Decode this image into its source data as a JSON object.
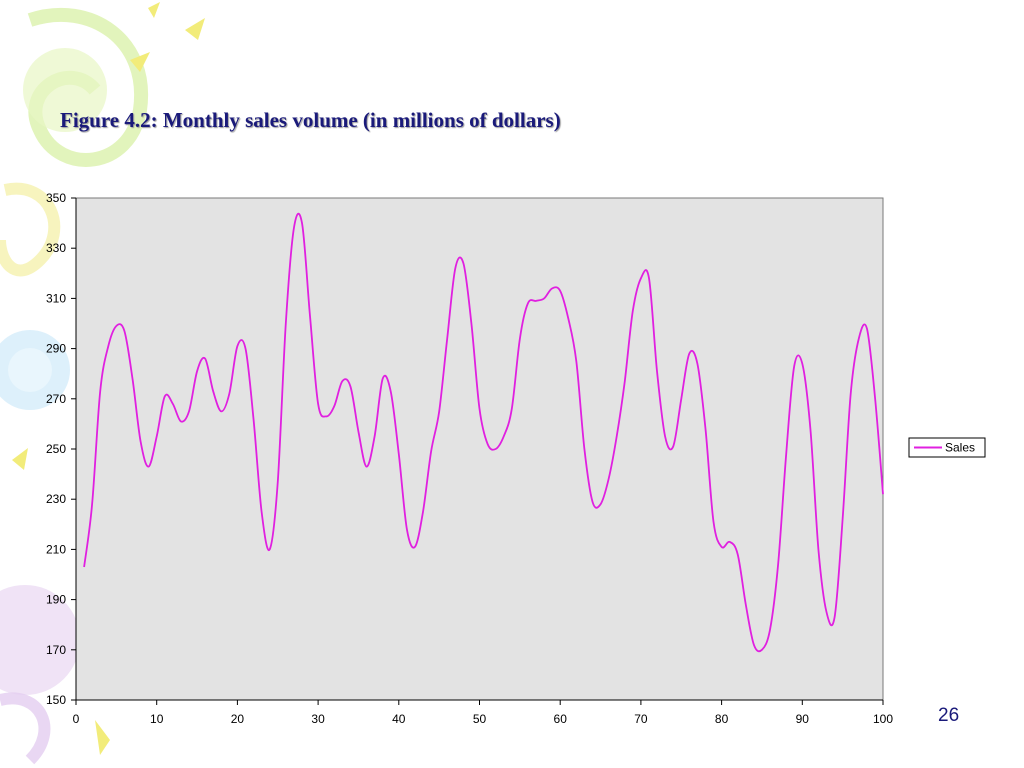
{
  "slide": {
    "title": "Figure 4.2:  Monthly sales volume (in millions of dollars)",
    "page_number": "26"
  },
  "colors": {
    "plot_background": "#e3e3e3",
    "series_line": "#e020e0",
    "title_text": "#1a1a7a"
  },
  "chart_data": {
    "type": "line",
    "title": "",
    "xlabel": "",
    "ylabel": "",
    "xlim": [
      0,
      100
    ],
    "ylim": [
      150,
      350
    ],
    "xticks": [
      0,
      10,
      20,
      30,
      40,
      50,
      60,
      70,
      80,
      90,
      100
    ],
    "yticks": [
      150,
      170,
      190,
      210,
      230,
      250,
      270,
      290,
      310,
      330,
      350
    ],
    "grid": false,
    "legend": {
      "position": "right",
      "entries": [
        "Sales"
      ]
    },
    "series": [
      {
        "name": "Sales",
        "color": "#e020e0",
        "x": [
          1,
          2,
          3,
          4,
          5,
          6,
          7,
          8,
          9,
          10,
          11,
          12,
          13,
          14,
          15,
          16,
          17,
          18,
          19,
          20,
          21,
          22,
          23,
          24,
          25,
          26,
          27,
          28,
          29,
          30,
          31,
          32,
          33,
          34,
          35,
          36,
          37,
          38,
          39,
          40,
          41,
          42,
          43,
          44,
          45,
          46,
          47,
          48,
          49,
          50,
          51,
          52,
          53,
          54,
          55,
          56,
          57,
          58,
          59,
          60,
          61,
          62,
          63,
          64,
          65,
          66,
          67,
          68,
          69,
          70,
          71,
          72,
          73,
          74,
          75,
          76,
          77,
          78,
          79,
          80,
          81,
          82,
          83,
          84,
          85,
          86,
          87,
          88,
          89,
          90,
          91,
          92,
          93,
          94,
          95,
          96,
          97,
          98,
          99,
          100
        ],
        "values": [
          203,
          228,
          273,
          291,
          299,
          297,
          278,
          253,
          243,
          255,
          271,
          268,
          261,
          265,
          281,
          286,
          273,
          265,
          272,
          291,
          290,
          262,
          225,
          210,
          237,
          300,
          338,
          340,
          303,
          268,
          263,
          267,
          277,
          275,
          257,
          243,
          255,
          278,
          273,
          248,
          218,
          211,
          225,
          249,
          265,
          294,
          322,
          324,
          300,
          266,
          252,
          250,
          255,
          266,
          294,
          308,
          309,
          310,
          314,
          313,
          302,
          285,
          250,
          229,
          228,
          238,
          255,
          277,
          305,
          318,
          318,
          281,
          255,
          251,
          270,
          288,
          284,
          258,
          221,
          211,
          213,
          208,
          188,
          172,
          170,
          178,
          204,
          248,
          283,
          284,
          258,
          210,
          185,
          183,
          222,
          272,
          294,
          298,
          271,
          232
        ]
      }
    ]
  }
}
